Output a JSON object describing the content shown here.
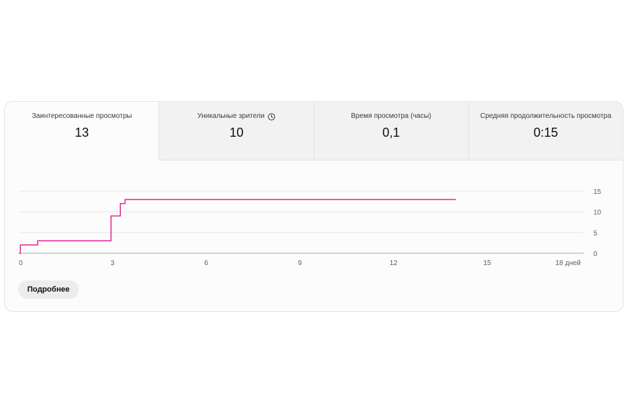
{
  "tabs": [
    {
      "label": "Заинтересованные просмотры",
      "value": "13",
      "active": true,
      "icon": null
    },
    {
      "label": "Уникальные зрители",
      "value": "10",
      "active": false,
      "icon": "clock-icon"
    },
    {
      "label": "Время просмотра (часы)",
      "value": "0,1",
      "active": false,
      "icon": null
    },
    {
      "label": "Средняя продолжительность просмотра",
      "value": "0:15",
      "active": false,
      "icon": null
    }
  ],
  "details_button": "Подробнее",
  "colors": {
    "line": "#e5359b",
    "grid": "#e8e8e8",
    "baseline": "#aaaaaa",
    "tick_text": "#606060"
  },
  "chart_data": {
    "type": "line",
    "x_tick_labels": [
      "0",
      "3",
      "6",
      "9",
      "12",
      "15",
      "18 дней"
    ],
    "x_ticks": [
      0,
      3,
      6,
      9,
      12,
      15,
      18
    ],
    "y_ticks": [
      0,
      5,
      10,
      15
    ],
    "xlim": [
      0,
      18
    ],
    "ylim": [
      0,
      15
    ],
    "grid": true,
    "y_axis_side": "right",
    "series": [
      {
        "x": [
          0,
          0.05,
          0.05,
          0.6,
          0.6,
          2.95,
          2.95,
          3.25,
          3.25,
          3.4,
          3.4,
          14
        ],
        "y": [
          0,
          0,
          2,
          2,
          3,
          3,
          9,
          9,
          12,
          12,
          13,
          13
        ]
      }
    ]
  }
}
